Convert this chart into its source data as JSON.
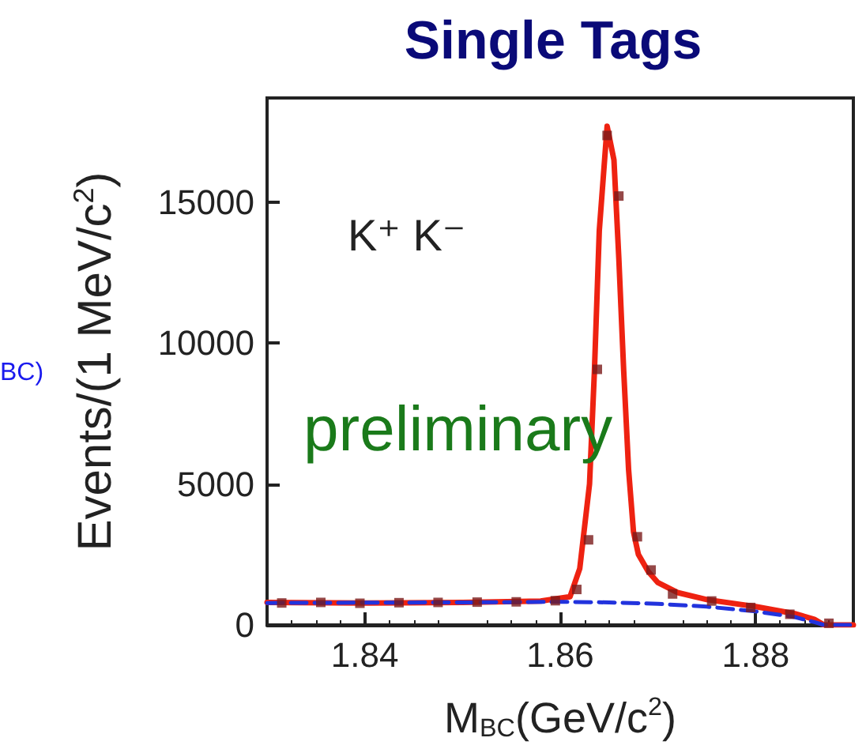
{
  "chart_data": {
    "type": "line",
    "title": "Single Tags",
    "xlabel": "M$_{BC}$(GeV/c$^{2}$)",
    "ylabel": "Events/(1 MeV/c$^{2}$)",
    "annotations": [
      "K⁺ K⁻",
      "preliminary",
      "BC)"
    ],
    "xlim": [
      1.83,
      1.89
    ],
    "xticks": [
      1.84,
      1.86,
      1.88
    ],
    "ylim": [
      0,
      18700
    ],
    "yticks": [
      0,
      5000,
      10000,
      15000
    ],
    "grid": false,
    "series": [
      {
        "color": "#ee2211",
        "line_style": "solid",
        "marker": "none",
        "x": [
          1.83,
          1.84,
          1.85,
          1.858,
          1.861,
          1.862,
          1.863,
          1.8635,
          1.864,
          1.8648,
          1.8655,
          1.866,
          1.8665,
          1.867,
          1.8675,
          1.868,
          1.869,
          1.87,
          1.872,
          1.875,
          1.88,
          1.884,
          1.886,
          1.887,
          1.89
        ],
        "values": [
          800,
          780,
          800,
          850,
          1000,
          2000,
          5000,
          9000,
          14000,
          17700,
          16500,
          13000,
          9000,
          5500,
          3300,
          2500,
          1900,
          1500,
          1150,
          900,
          650,
          400,
          200,
          0,
          0
        ]
      },
      {
        "color": "#2233dd",
        "line_style": "dashed",
        "marker": "none",
        "x": [
          1.83,
          1.84,
          1.85,
          1.86,
          1.865,
          1.87,
          1.875,
          1.88,
          1.884,
          1.886,
          1.887,
          1.89
        ],
        "values": [
          780,
          790,
          800,
          820,
          800,
          750,
          650,
          480,
          280,
          100,
          0,
          0
        ]
      },
      {
        "type": "scatter",
        "color": "#7a1a1a",
        "marker": "square",
        "x": [
          1.8315,
          1.8355,
          1.8395,
          1.8435,
          1.8475,
          1.8515,
          1.8555,
          1.8595,
          1.8617,
          1.8629,
          1.8638,
          1.8648,
          1.866,
          1.8679,
          1.8693,
          1.8715,
          1.8755,
          1.8795,
          1.8835,
          1.8875
        ],
        "values": [
          780,
          800,
          770,
          790,
          800,
          810,
          820,
          860,
          1260,
          3020,
          9070,
          17370,
          15220,
          3130,
          1950,
          1100,
          850,
          620,
          380,
          60
        ]
      }
    ]
  }
}
